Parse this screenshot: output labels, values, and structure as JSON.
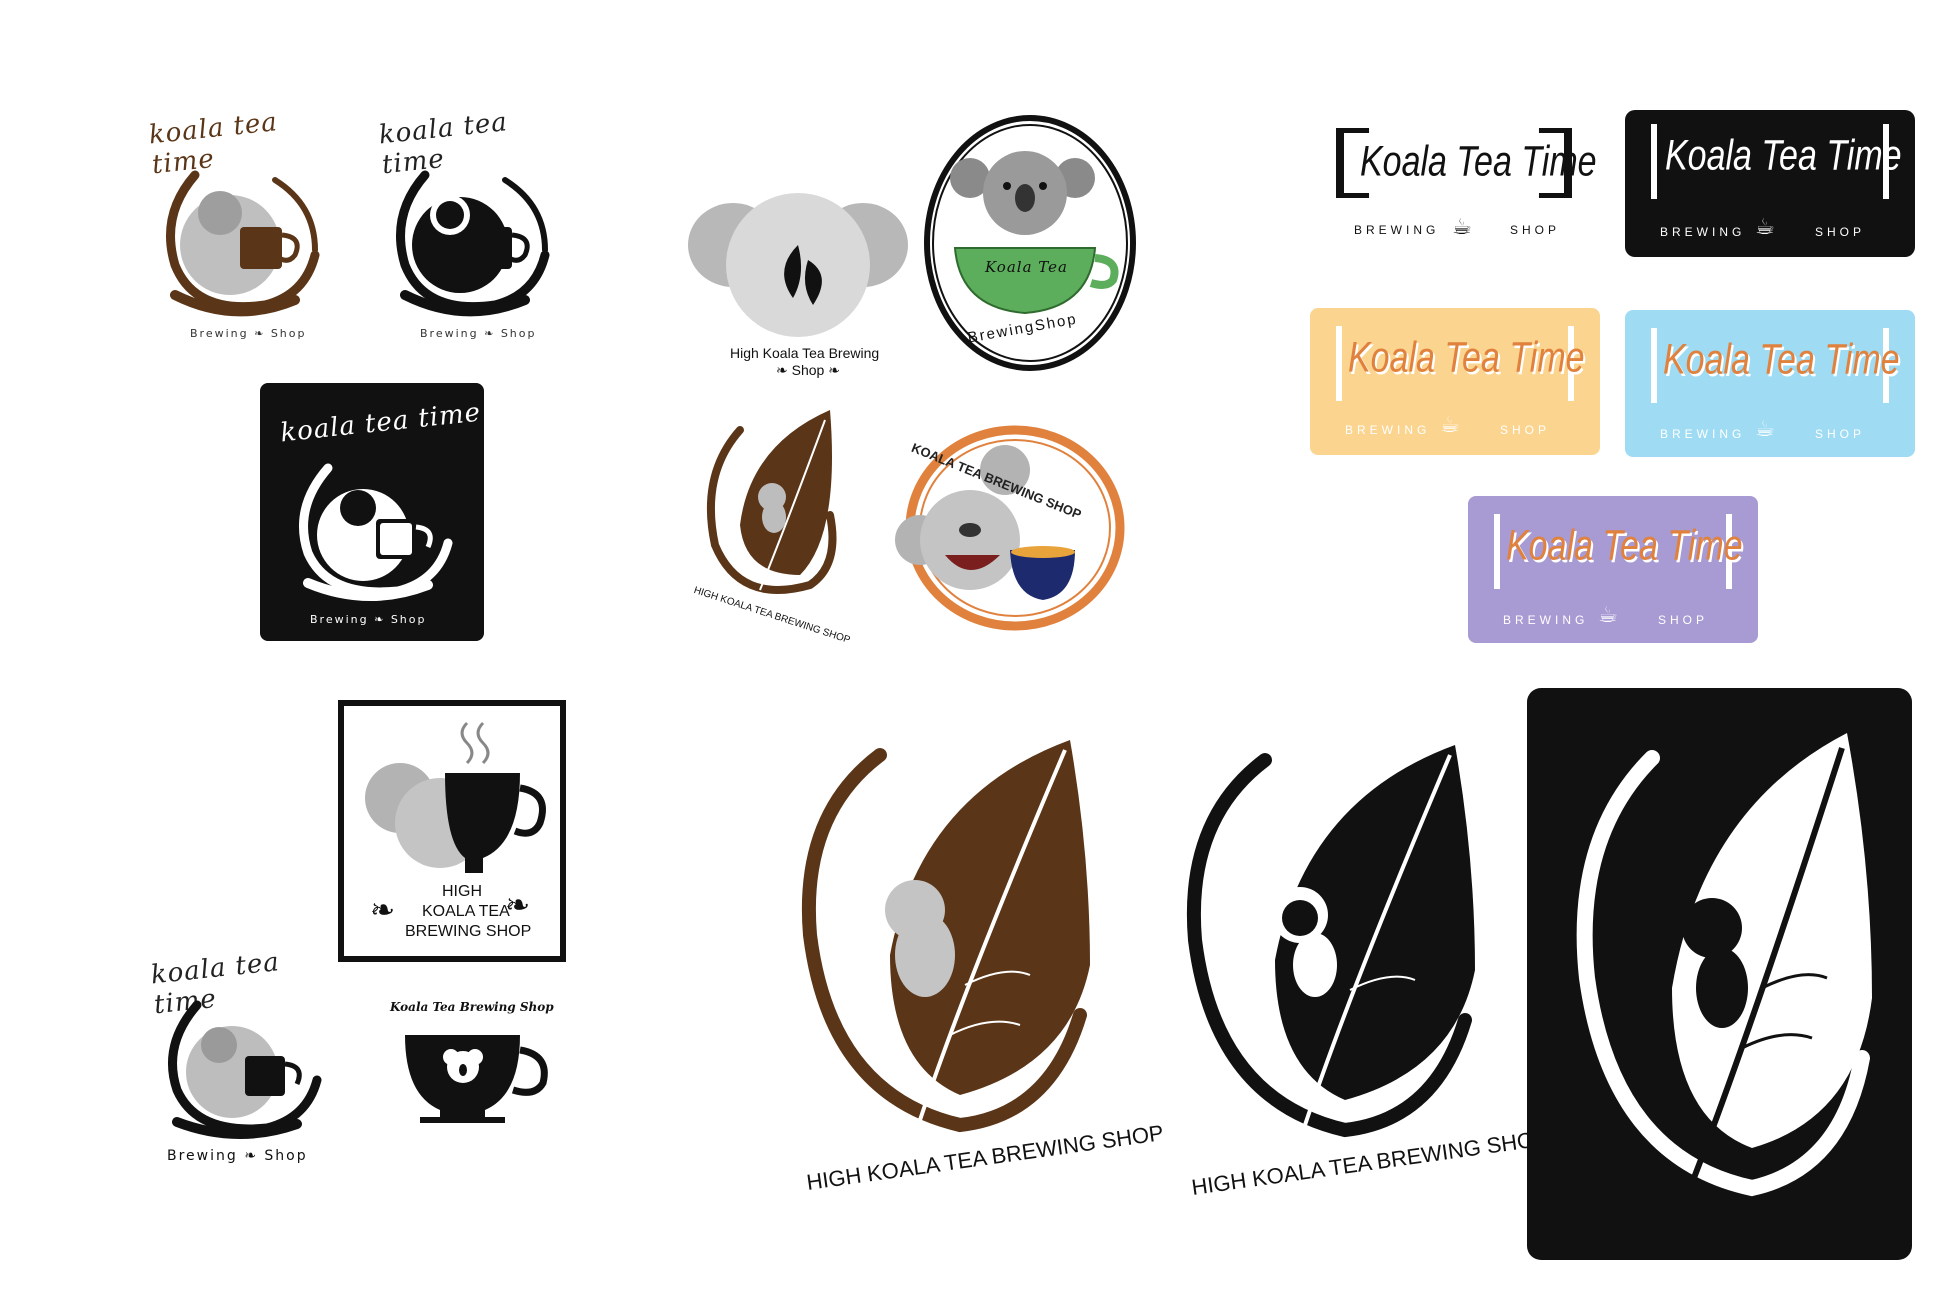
{
  "koala_tea_time": {
    "script_title": "koala tea time",
    "brewing": "Brewing",
    "shop": "Shop"
  },
  "high_koala": {
    "circle_caption_line1": "High Koala Tea Brewing",
    "circle_caption_line2": "Shop",
    "cup_label": "Koala Tea",
    "cup_ring_text": "BrewingShop",
    "leaf_caption": "HIGH KOALA TEA BREWING SHOP",
    "orange_ring_text": "KOALA TEA BREWING SHOP"
  },
  "frame_logo": {
    "title": "Koala Tea Time",
    "brewing": "BREWING",
    "shop": "SHOP"
  },
  "square_logo": {
    "line1": "HIGH",
    "line2": "KOALA TEA",
    "line3": "BREWING SHOP"
  },
  "teacup_logo": {
    "title": "Koala Tea Brewing Shop"
  },
  "colors": {
    "brown": "#5a3517",
    "gray": "#b3b3b3",
    "dark": "#111111",
    "yellow": "#fbd48f",
    "blue": "#9fdcf4",
    "purple": "#a89bd3",
    "orange": "#e0823e",
    "green": "#5cae5c"
  }
}
